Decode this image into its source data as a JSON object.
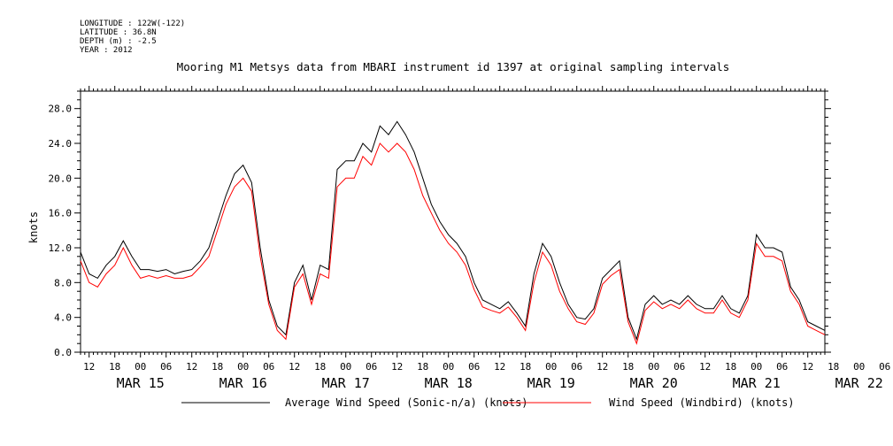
{
  "header": {
    "longitude": "LONGITUDE : 122W(-122)",
    "latitude": "LATITUDE : 36.8N",
    "depth": "DEPTH (m) : -2.5",
    "year": "YEAR : 2012"
  },
  "chart_data": {
    "type": "line",
    "title": "Mooring M1 Metsys data from MBARI instrument id 1397 at original sampling intervals",
    "ylabel": "knots",
    "ylim": [
      0,
      30
    ],
    "xlim_hours": [
      -14,
      160
    ],
    "x_units": "hours relative to 2012-03-15 00:00",
    "y_ticks": [
      "0.0",
      "4.0",
      "8.0",
      "12.0",
      "16.0",
      "20.0",
      "24.0",
      "28.0"
    ],
    "x_hour_ticks": [
      "12",
      "18",
      "00",
      "06",
      "12",
      "18",
      "00",
      "06",
      "12",
      "18",
      "00",
      "06",
      "12",
      "18",
      "00",
      "06",
      "12",
      "18",
      "00",
      "06",
      "12",
      "18",
      "00",
      "06",
      "12",
      "18",
      "00",
      "06",
      "12",
      "18",
      "00",
      "06"
    ],
    "x_day_labels": [
      "MAR 15",
      "MAR 16",
      "MAR 17",
      "MAR 18",
      "MAR 19",
      "MAR 20",
      "MAR 21",
      "MAR 22"
    ],
    "grid": false,
    "legend_placement": "bottom",
    "series": [
      {
        "name": "Average Wind Speed (Sonic-n/a) (knots)",
        "color": "#000000",
        "x": [
          -14,
          -12,
          -10,
          -8,
          -6,
          -4,
          -2,
          0,
          2,
          4,
          6,
          8,
          10,
          12,
          14,
          16,
          18,
          20,
          22,
          24,
          26,
          28,
          30,
          32,
          34,
          36,
          38,
          40,
          42,
          44,
          46,
          48,
          50,
          52,
          54,
          56,
          58,
          60,
          62,
          64,
          66,
          68,
          70,
          72,
          74,
          76,
          78,
          80,
          82,
          84,
          86,
          88,
          90,
          92,
          94,
          96,
          98,
          100,
          102,
          104,
          106,
          108,
          110,
          112,
          114,
          116,
          118,
          120,
          122,
          124,
          126,
          128,
          130,
          132,
          134,
          136,
          138,
          140,
          142,
          144,
          146,
          148,
          150,
          152,
          154,
          156,
          158,
          160
        ],
        "values": [
          11.5,
          9,
          8.5,
          10,
          11,
          12.8,
          11,
          9.5,
          9.5,
          9.3,
          9.5,
          9,
          9.3,
          9.5,
          10.5,
          12,
          15,
          18,
          20.5,
          21.5,
          19.5,
          12,
          6,
          3,
          2,
          8,
          10,
          6,
          10,
          9.5,
          21,
          22,
          22,
          24,
          23,
          26,
          25,
          26.5,
          25,
          23,
          20,
          17,
          15,
          13.5,
          12.5,
          11,
          8,
          6,
          5.5,
          5,
          5.8,
          4.5,
          3,
          9,
          12.5,
          11,
          8,
          5.5,
          4,
          3.8,
          5,
          8.5,
          9.5,
          10.5,
          4,
          1.5,
          5.5,
          6.5,
          5.5,
          6,
          5.5,
          6.5,
          5.5,
          5,
          5,
          6.5,
          5,
          4.5,
          6.5,
          13.5,
          12,
          12,
          11.5,
          7.5,
          6,
          3.5,
          3,
          2.5
        ]
      },
      {
        "name": "Wind Speed (Windbird) (knots)",
        "color": "#ff0000",
        "x": [
          -14,
          -12,
          -10,
          -8,
          -6,
          -4,
          -2,
          0,
          2,
          4,
          6,
          8,
          10,
          12,
          14,
          16,
          18,
          20,
          22,
          24,
          26,
          28,
          30,
          32,
          34,
          36,
          38,
          40,
          42,
          44,
          46,
          48,
          50,
          52,
          54,
          56,
          58,
          60,
          62,
          64,
          66,
          68,
          70,
          72,
          74,
          76,
          78,
          80,
          82,
          84,
          86,
          88,
          90,
          92,
          94,
          96,
          98,
          100,
          102,
          104,
          106,
          108,
          110,
          112,
          114,
          116,
          118,
          120,
          122,
          124,
          126,
          128,
          130,
          132,
          134,
          136,
          138,
          140,
          142,
          144,
          146,
          148,
          150,
          152,
          154,
          156,
          158,
          160
        ],
        "values": [
          10.5,
          8,
          7.5,
          9,
          10,
          12,
          10,
          8.5,
          8.8,
          8.5,
          8.8,
          8.5,
          8.5,
          8.8,
          9.8,
          11,
          14,
          17,
          19,
          20,
          18.5,
          11,
          5.5,
          2.5,
          1.5,
          7.5,
          9,
          5.5,
          9,
          8.5,
          19,
          20,
          20,
          22.5,
          21.5,
          24,
          23,
          24,
          23,
          21,
          18,
          16,
          14,
          12.5,
          11.5,
          10,
          7.2,
          5.2,
          4.8,
          4.5,
          5.2,
          4,
          2.5,
          8,
          11.5,
          10,
          7,
          5,
          3.5,
          3.2,
          4.5,
          7.8,
          8.8,
          9.5,
          3.5,
          1,
          4.8,
          5.8,
          5,
          5.5,
          5,
          6,
          5,
          4.5,
          4.5,
          6,
          4.5,
          4,
          6,
          12.5,
          11,
          11,
          10.5,
          7,
          5.5,
          3,
          2.5,
          2
        ]
      }
    ]
  }
}
